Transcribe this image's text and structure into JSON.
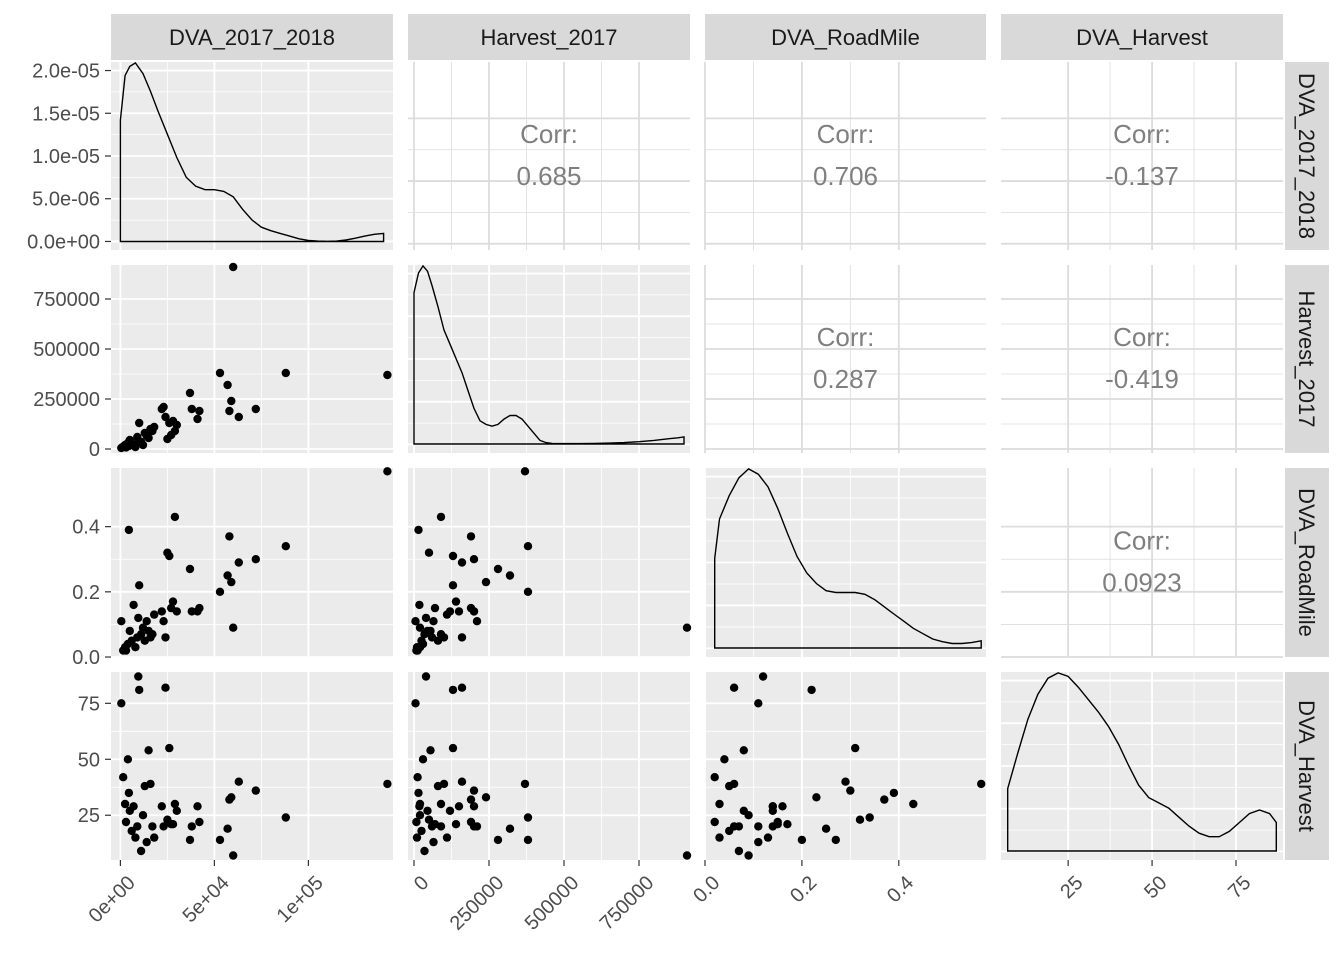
{
  "chart_data": {
    "type": "scatter",
    "variables": [
      "DVA_2017_2018",
      "Harvest_2017",
      "DVA_RoadMile",
      "DVA_Harvest"
    ],
    "axes": {
      "DVA_2017_2018": {
        "range": [
          -5000,
          145000
        ],
        "ticks": [
          0,
          50000,
          100000
        ],
        "tick_labels": [
          "0e+00",
          "5e+04",
          "1e+05"
        ]
      },
      "Harvest_2017": {
        "range": [
          -20000,
          920000
        ],
        "ticks": [
          0,
          250000,
          500000,
          750000
        ],
        "tick_labels": [
          "0",
          "250000",
          "500000",
          "750000"
        ]
      },
      "DVA_RoadMile": {
        "range": [
          0.0,
          0.58
        ],
        "ticks": [
          0.0,
          0.2,
          0.4
        ],
        "tick_labels": [
          "0.0",
          "0.2",
          "0.4"
        ],
        "left_tick_labels": [
          "0.0",
          "0.2",
          "0.4"
        ]
      },
      "DVA_Harvest": {
        "range": [
          5,
          89
        ],
        "ticks": [
          25,
          50,
          75
        ],
        "tick_labels": [
          "25",
          "50",
          "75"
        ]
      }
    },
    "density_axis": {
      "range": [
        -1e-06,
        2.1e-05
      ],
      "ticks": [
        0,
        5e-06,
        1e-05,
        1.5e-05,
        2e-05
      ],
      "tick_labels": [
        "0.0e+00",
        "5.0e-06",
        "1.0e-05",
        "1.5e-05",
        "2.0e-05"
      ]
    },
    "densities": [
      [
        [
          0,
          0.68
        ],
        [
          2500,
          0.93
        ],
        [
          5000,
          0.98
        ],
        [
          8000,
          1.0
        ],
        [
          12000,
          0.94
        ],
        [
          16000,
          0.84
        ],
        [
          20000,
          0.73
        ],
        [
          25000,
          0.6
        ],
        [
          30000,
          0.47
        ],
        [
          35000,
          0.36
        ],
        [
          40000,
          0.31
        ],
        [
          45000,
          0.29
        ],
        [
          50000,
          0.29
        ],
        [
          55000,
          0.28
        ],
        [
          60000,
          0.25
        ],
        [
          65000,
          0.18
        ],
        [
          70000,
          0.12
        ],
        [
          75000,
          0.08
        ],
        [
          80000,
          0.06
        ],
        [
          85000,
          0.045
        ],
        [
          90000,
          0.03
        ],
        [
          95000,
          0.015
        ],
        [
          100000,
          0.006
        ],
        [
          105000,
          0.002
        ],
        [
          110000,
          0.001
        ],
        [
          115000,
          0.002
        ],
        [
          120000,
          0.008
        ],
        [
          125000,
          0.018
        ],
        [
          130000,
          0.03
        ],
        [
          135000,
          0.04
        ],
        [
          140000,
          0.045
        ]
      ],
      [
        [
          0,
          0.85
        ],
        [
          15000,
          0.96
        ],
        [
          30000,
          1.0
        ],
        [
          45000,
          0.97
        ],
        [
          60000,
          0.89
        ],
        [
          80000,
          0.77
        ],
        [
          100000,
          0.64
        ],
        [
          120000,
          0.56
        ],
        [
          140000,
          0.48
        ],
        [
          160000,
          0.4
        ],
        [
          180000,
          0.3
        ],
        [
          200000,
          0.2
        ],
        [
          220000,
          0.13
        ],
        [
          240000,
          0.11
        ],
        [
          260000,
          0.1
        ],
        [
          280000,
          0.11
        ],
        [
          300000,
          0.14
        ],
        [
          320000,
          0.16
        ],
        [
          340000,
          0.16
        ],
        [
          360000,
          0.14
        ],
        [
          380000,
          0.1
        ],
        [
          400000,
          0.06
        ],
        [
          420000,
          0.02
        ],
        [
          440000,
          0.008
        ],
        [
          460000,
          0.003
        ],
        [
          500000,
          0.002
        ],
        [
          550000,
          0.002
        ],
        [
          600000,
          0.003
        ],
        [
          650000,
          0.005
        ],
        [
          700000,
          0.008
        ],
        [
          750000,
          0.013
        ],
        [
          800000,
          0.02
        ],
        [
          850000,
          0.03
        ],
        [
          880000,
          0.035
        ],
        [
          900000,
          0.04
        ]
      ],
      [
        [
          0.02,
          0.5
        ],
        [
          0.03,
          0.72
        ],
        [
          0.05,
          0.85
        ],
        [
          0.07,
          0.95
        ],
        [
          0.09,
          1.0
        ],
        [
          0.11,
          0.97
        ],
        [
          0.13,
          0.9
        ],
        [
          0.15,
          0.78
        ],
        [
          0.17,
          0.64
        ],
        [
          0.19,
          0.51
        ],
        [
          0.21,
          0.42
        ],
        [
          0.23,
          0.36
        ],
        [
          0.25,
          0.32
        ],
        [
          0.27,
          0.31
        ],
        [
          0.29,
          0.31
        ],
        [
          0.31,
          0.31
        ],
        [
          0.33,
          0.3
        ],
        [
          0.35,
          0.27
        ],
        [
          0.37,
          0.23
        ],
        [
          0.39,
          0.19
        ],
        [
          0.41,
          0.15
        ],
        [
          0.43,
          0.11
        ],
        [
          0.45,
          0.08
        ],
        [
          0.47,
          0.05
        ],
        [
          0.49,
          0.035
        ],
        [
          0.51,
          0.025
        ],
        [
          0.53,
          0.025
        ],
        [
          0.55,
          0.03
        ],
        [
          0.57,
          0.04
        ]
      ],
      [
        [
          7,
          0.35
        ],
        [
          10,
          0.55
        ],
        [
          13,
          0.74
        ],
        [
          16,
          0.88
        ],
        [
          19,
          0.97
        ],
        [
          22,
          1.0
        ],
        [
          25,
          0.98
        ],
        [
          28,
          0.92
        ],
        [
          31,
          0.85
        ],
        [
          34,
          0.78
        ],
        [
          37,
          0.7
        ],
        [
          40,
          0.6
        ],
        [
          43,
          0.48
        ],
        [
          46,
          0.37
        ],
        [
          49,
          0.3
        ],
        [
          52,
          0.27
        ],
        [
          55,
          0.24
        ],
        [
          58,
          0.19
        ],
        [
          61,
          0.14
        ],
        [
          64,
          0.1
        ],
        [
          67,
          0.08
        ],
        [
          70,
          0.08
        ],
        [
          73,
          0.11
        ],
        [
          76,
          0.16
        ],
        [
          79,
          0.21
        ],
        [
          82,
          0.23
        ],
        [
          85,
          0.21
        ],
        [
          87,
          0.16
        ]
      ]
    ],
    "correlations": [
      {
        "row": 0,
        "col": 1,
        "label": "Corr:",
        "value": "0.685"
      },
      {
        "row": 0,
        "col": 2,
        "label": "Corr:",
        "value": "0.706"
      },
      {
        "row": 0,
        "col": 3,
        "label": "Corr:",
        "value": "-0.137"
      },
      {
        "row": 1,
        "col": 2,
        "label": "Corr:",
        "value": "0.287"
      },
      {
        "row": 1,
        "col": 3,
        "label": "Corr:",
        "value": "-0.419"
      },
      {
        "row": 2,
        "col": 3,
        "label": "Corr:",
        "value": "0.0923"
      }
    ],
    "points": [
      [
        500,
        5000,
        0.11,
        75
      ],
      [
        1500,
        12000,
        0.02,
        42
      ],
      [
        2500,
        20000,
        0.03,
        30
      ],
      [
        3000,
        8000,
        0.02,
        22
      ],
      [
        4000,
        30000,
        0.04,
        50
      ],
      [
        4500,
        15000,
        0.39,
        35
      ],
      [
        5000,
        45000,
        0.08,
        27
      ],
      [
        6000,
        25000,
        0.05,
        18
      ],
      [
        7000,
        18000,
        0.16,
        29
      ],
      [
        8000,
        10000,
        0.03,
        15
      ],
      [
        9000,
        60000,
        0.06,
        20
      ],
      [
        9500,
        40000,
        0.12,
        87
      ],
      [
        10000,
        130000,
        0.22,
        81
      ],
      [
        11000,
        35000,
        0.07,
        9
      ],
      [
        12000,
        20000,
        0.09,
        25
      ],
      [
        13000,
        80000,
        0.05,
        38
      ],
      [
        14000,
        65000,
        0.11,
        13
      ],
      [
        15000,
        55000,
        0.08,
        54
      ],
      [
        16000,
        100000,
        0.06,
        39
      ],
      [
        17000,
        90000,
        0.07,
        20
      ],
      [
        18000,
        110000,
        0.13,
        15
      ],
      [
        22000,
        200000,
        0.14,
        29
      ],
      [
        23000,
        210000,
        0.11,
        20
      ],
      [
        24000,
        160000,
        0.06,
        82
      ],
      [
        25000,
        50000,
        0.32,
        23
      ],
      [
        26000,
        130000,
        0.31,
        55
      ],
      [
        27000,
        70000,
        0.15,
        21
      ],
      [
        28000,
        140000,
        0.17,
        21
      ],
      [
        29000,
        90000,
        0.43,
        30
      ],
      [
        30000,
        120000,
        0.14,
        27
      ],
      [
        37000,
        280000,
        0.27,
        14
      ],
      [
        38000,
        200000,
        0.14,
        20
      ],
      [
        41000,
        150000,
        0.14,
        29
      ],
      [
        42000,
        190000,
        0.15,
        22
      ],
      [
        53000,
        380000,
        0.2,
        14
      ],
      [
        57000,
        320000,
        0.25,
        19
      ],
      [
        58000,
        190000,
        0.37,
        32
      ],
      [
        59000,
        240000,
        0.23,
        33
      ],
      [
        60000,
        910000,
        0.09,
        7
      ],
      [
        63000,
        160000,
        0.29,
        40
      ],
      [
        72000,
        200000,
        0.3,
        36
      ],
      [
        88000,
        380000,
        0.34,
        24
      ],
      [
        142000,
        370000,
        0.57,
        39
      ]
    ]
  }
}
